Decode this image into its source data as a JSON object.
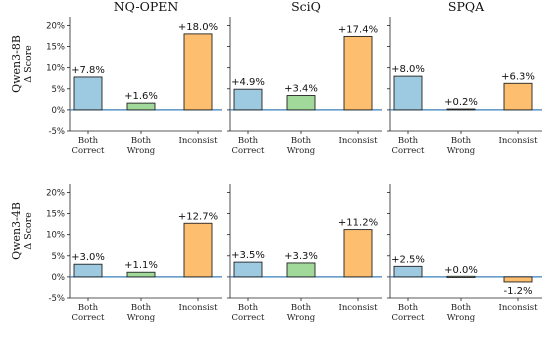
{
  "columns": [
    "NQ-OPEN",
    "SciQ",
    "SPQA"
  ],
  "rows": [
    {
      "label": "Qwen3-8B",
      "sublabel": "Δ Score"
    },
    {
      "label": "Qwen3-4B",
      "sublabel": "Δ Score"
    }
  ],
  "categories": [
    [
      "Both",
      "Correct"
    ],
    [
      "Both",
      "Wrong"
    ],
    [
      "Inconsist"
    ]
  ],
  "yticks": [
    "-5%",
    "0%",
    "5%",
    "10%",
    "15%",
    "20%"
  ],
  "colors": {
    "both_correct": "#9ecae1",
    "both_wrong": "#a1d99b",
    "inconsist": "#fdbf6f",
    "zero_line": "#3a7fb8",
    "edge": "#222222"
  },
  "chart_data": [
    {
      "type": "bar",
      "row": "Qwen3-8B",
      "title": "NQ-OPEN",
      "categories": [
        "Both Correct",
        "Both Wrong",
        "Inconsist"
      ],
      "values": [
        7.8,
        1.6,
        18.0
      ],
      "labels": [
        "+7.8%",
        "+1.6%",
        "+18.0%"
      ],
      "ylim": [
        -5,
        22
      ],
      "ylabel": "Δ Score"
    },
    {
      "type": "bar",
      "row": "Qwen3-8B",
      "title": "SciQ",
      "categories": [
        "Both Correct",
        "Both Wrong",
        "Inconsist"
      ],
      "values": [
        4.9,
        3.4,
        17.4
      ],
      "labels": [
        "+4.9%",
        "+3.4%",
        "+17.4%"
      ],
      "ylim": [
        -5,
        22
      ],
      "ylabel": "Δ Score"
    },
    {
      "type": "bar",
      "row": "Qwen3-8B",
      "title": "SPQA",
      "categories": [
        "Both Correct",
        "Both Wrong",
        "Inconsist"
      ],
      "values": [
        8.0,
        0.2,
        6.3
      ],
      "labels": [
        "+8.0%",
        "+0.2%",
        "+6.3%"
      ],
      "ylim": [
        -5,
        22
      ],
      "ylabel": "Δ Score"
    },
    {
      "type": "bar",
      "row": "Qwen3-4B",
      "title": "NQ-OPEN",
      "categories": [
        "Both Correct",
        "Both Wrong",
        "Inconsist"
      ],
      "values": [
        3.0,
        1.1,
        12.7
      ],
      "labels": [
        "+3.0%",
        "+1.1%",
        "+12.7%"
      ],
      "ylim": [
        -5,
        22
      ],
      "ylabel": "Δ Score"
    },
    {
      "type": "bar",
      "row": "Qwen3-4B",
      "title": "SciQ",
      "categories": [
        "Both Correct",
        "Both Wrong",
        "Inconsist"
      ],
      "values": [
        3.5,
        3.3,
        11.2
      ],
      "labels": [
        "+3.5%",
        "+3.3%",
        "+11.2%"
      ],
      "ylim": [
        -5,
        22
      ],
      "ylabel": "Δ Score"
    },
    {
      "type": "bar",
      "row": "Qwen3-4B",
      "title": "SPQA",
      "categories": [
        "Both Correct",
        "Both Wrong",
        "Inconsist"
      ],
      "values": [
        2.5,
        0.0,
        -1.2
      ],
      "labels": [
        "+2.5%",
        "+0.0%",
        "-1.2%"
      ],
      "ylim": [
        -5,
        22
      ],
      "ylabel": "Δ Score"
    }
  ]
}
